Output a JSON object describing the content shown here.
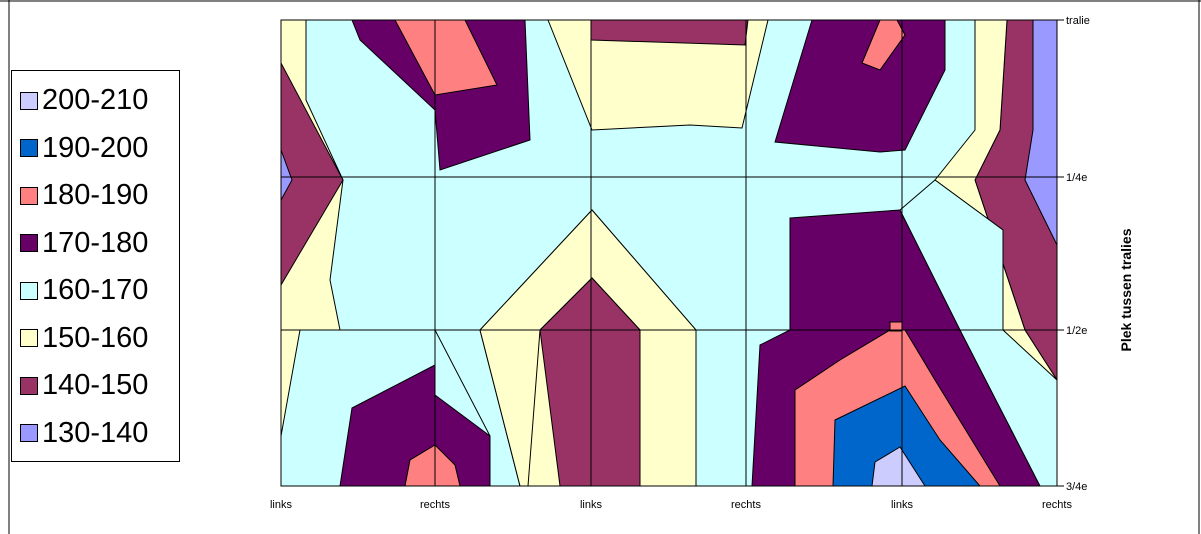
{
  "chart_data": {
    "type": "contour",
    "x_tick_labels": [
      "links",
      "rechts",
      "links",
      "rechts",
      "links",
      "rechts"
    ],
    "y_tick_labels": [
      "tralie",
      "1/4e",
      "1/2e",
      "3/4e"
    ],
    "y_axis_title": "Plek tussen tralies",
    "legend": [
      {
        "label": "200-210",
        "color": "#ccccff"
      },
      {
        "label": "190-200",
        "color": "#0066cc"
      },
      {
        "label": "180-190",
        "color": "#ff8080"
      },
      {
        "label": "170-180",
        "color": "#660066"
      },
      {
        "label": "160-170",
        "color": "#ccffff"
      },
      {
        "label": "150-160",
        "color": "#ffffcc"
      },
      {
        "label": "140-150",
        "color": "#993366"
      },
      {
        "label": "130-140",
        "color": "#9999ff"
      }
    ],
    "bands": [
      {
        "range": "150-160",
        "color": "#ffffcc"
      },
      {
        "range": "160-170",
        "color": "#ccffff"
      },
      {
        "range": "140-150",
        "color": "#993366"
      },
      {
        "range": "130-140",
        "color": "#9999ff"
      },
      {
        "range": "170-180",
        "color": "#660066"
      },
      {
        "range": "180-190",
        "color": "#ff8080"
      },
      {
        "range": "190-200",
        "color": "#0066cc"
      },
      {
        "range": "200-210",
        "color": "#ccccff"
      }
    ],
    "grid": true,
    "legend_position": "left"
  }
}
